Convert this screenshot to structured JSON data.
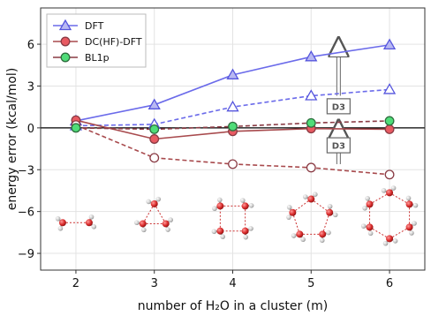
{
  "chart_data": {
    "type": "line",
    "xlabel": "number of H₂O in a cluster (m)",
    "ylabel": "energy error (kcal/mol)",
    "x": [
      2,
      3,
      4,
      5,
      6
    ],
    "xticks": [
      "2",
      "3",
      "4",
      "5",
      "6"
    ],
    "xlim": [
      1.55,
      6.45
    ],
    "ylim": [
      -10.2,
      8.6
    ],
    "yticks": [
      6,
      3,
      0,
      -3,
      -6,
      -9
    ],
    "ytick_labels": [
      "6",
      "3",
      "0",
      "−3",
      "−6",
      "−9"
    ],
    "grid": true,
    "legend_position": "top-left",
    "legend": [
      {
        "name": "DFT",
        "marker": "triangle",
        "color": "#6b6bea"
      },
      {
        "name": "DC(HF)-DFT",
        "marker": "circle",
        "color": "#a84a4d"
      },
      {
        "name": "BL1p",
        "marker": "circle",
        "color": "#8a3b44"
      }
    ],
    "series": [
      {
        "key": "dft",
        "values": [
          0.5,
          1.65,
          3.8,
          5.1,
          5.95
        ],
        "style": "solid",
        "marker": "triangle",
        "line_color": "#6b6bea",
        "face": "#b8b8f2",
        "edge": "#5555dd"
      },
      {
        "key": "dft_d3",
        "values": [
          0.15,
          0.25,
          1.5,
          2.3,
          2.75
        ],
        "style": "dashed",
        "marker": "triangle",
        "line_color": "#6b6bea",
        "face": "#ffffff",
        "edge": "#5555dd"
      },
      {
        "key": "dchf",
        "values": [
          0.55,
          -0.8,
          -0.25,
          -0.05,
          -0.1
        ],
        "style": "solid",
        "marker": "circle",
        "line_color": "#a84a4d",
        "face": "#e85a62",
        "edge": "#8a3b44"
      },
      {
        "key": "dchf_d3",
        "values": [
          0.2,
          -2.15,
          -2.6,
          -2.85,
          -3.35
        ],
        "style": "dashed",
        "marker": "circle",
        "line_color": "#a84a4d",
        "face": "#ffffff",
        "edge": "#8a3b44"
      },
      {
        "key": "bl1p",
        "values": [
          0.0,
          -0.1,
          0.1,
          0.35,
          0.5
        ],
        "style": "dashed",
        "marker": "circle",
        "line_color": "#8a3b44",
        "face": "#4fdc78",
        "edge": "#2e6e3e"
      }
    ],
    "annotations": [
      {
        "text": "D3",
        "x": 5.35,
        "y": 1.55,
        "arrow_from": 2.3,
        "arrow_to": 5.8
      },
      {
        "text": "D3",
        "x": 5.35,
        "y": -1.25,
        "arrow_from": -2.6,
        "arrow_to": -0.1
      }
    ]
  },
  "colors": {
    "hf_line": "#a84a4d",
    "oxygen": "#e23a3a",
    "hydrogen": "#c9c9c9",
    "hbond": "#cc3333"
  }
}
